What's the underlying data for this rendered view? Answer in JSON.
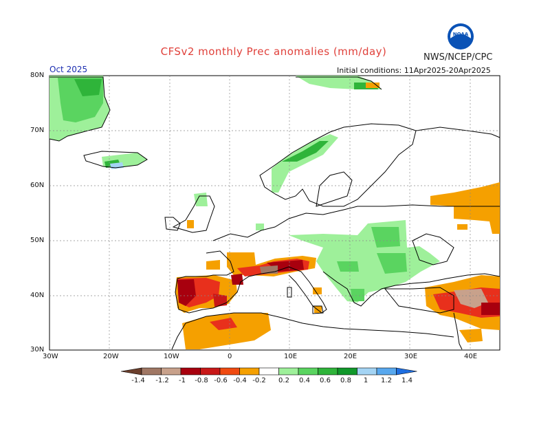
{
  "header": {
    "title": "CFSv2 monthly Prec anomalies (mm/day)",
    "agency": "NWS/NCEP/CPC",
    "month": "Oct 2025",
    "initial_conditions": "Initial conditions: 11Apr2025-20Apr2025",
    "logo_text": "NOAA"
  },
  "map": {
    "lat_labels": [
      "80N",
      "70N",
      "60N",
      "50N",
      "40N",
      "30N"
    ],
    "lon_labels": [
      "30W",
      "20W",
      "10W",
      "0",
      "10E",
      "20E",
      "30E",
      "40E"
    ]
  },
  "legend": {
    "labels": [
      "-1.4",
      "-1.2",
      "-1",
      "-0.8",
      "-0.6",
      "-0.4",
      "-0.2",
      "0.2",
      "0.4",
      "0.6",
      "0.8",
      "1",
      "1.2",
      "1.4"
    ],
    "colors": [
      "#6b3f2c",
      "#a07764",
      "#c8a18b",
      "#a8000e",
      "#c81818",
      "#f04a10",
      "#f5a000",
      "#ffffff",
      "#9ef09a",
      "#5ad460",
      "#2fb43a",
      "#10982a",
      "#a4d4f4",
      "#58a8ee",
      "#1e6ee0"
    ]
  },
  "colors": {
    "dry_dark": "#a8000e",
    "dry_mid": "#e8301c",
    "dry_light": "#f5a000",
    "wet_light": "#9ef09a",
    "wet_mid": "#5ad460",
    "wet_dark": "#10982a",
    "title": "#e0403a"
  }
}
